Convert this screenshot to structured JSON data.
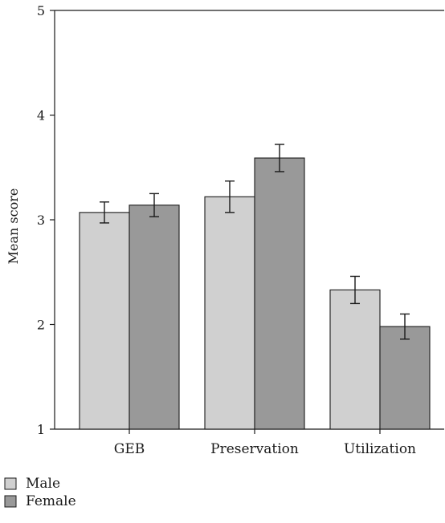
{
  "chart_data": {
    "type": "bar",
    "categories": [
      "GEB",
      "Preservation",
      "Utilization"
    ],
    "series": [
      {
        "name": "Male",
        "values": [
          3.07,
          3.22,
          2.33
        ],
        "errors": [
          0.1,
          0.15,
          0.13
        ],
        "color": "#d0d0d0"
      },
      {
        "name": "Female",
        "values": [
          3.14,
          3.59,
          1.98
        ],
        "errors": [
          0.11,
          0.13,
          0.12
        ],
        "color": "#999999"
      }
    ],
    "title": "",
    "xlabel": "",
    "ylabel": "Mean score",
    "ylim": [
      1,
      5
    ],
    "yticks": [
      "1",
      "2",
      "3",
      "4",
      "5"
    ],
    "grid": false,
    "legend": "bottom-left"
  }
}
